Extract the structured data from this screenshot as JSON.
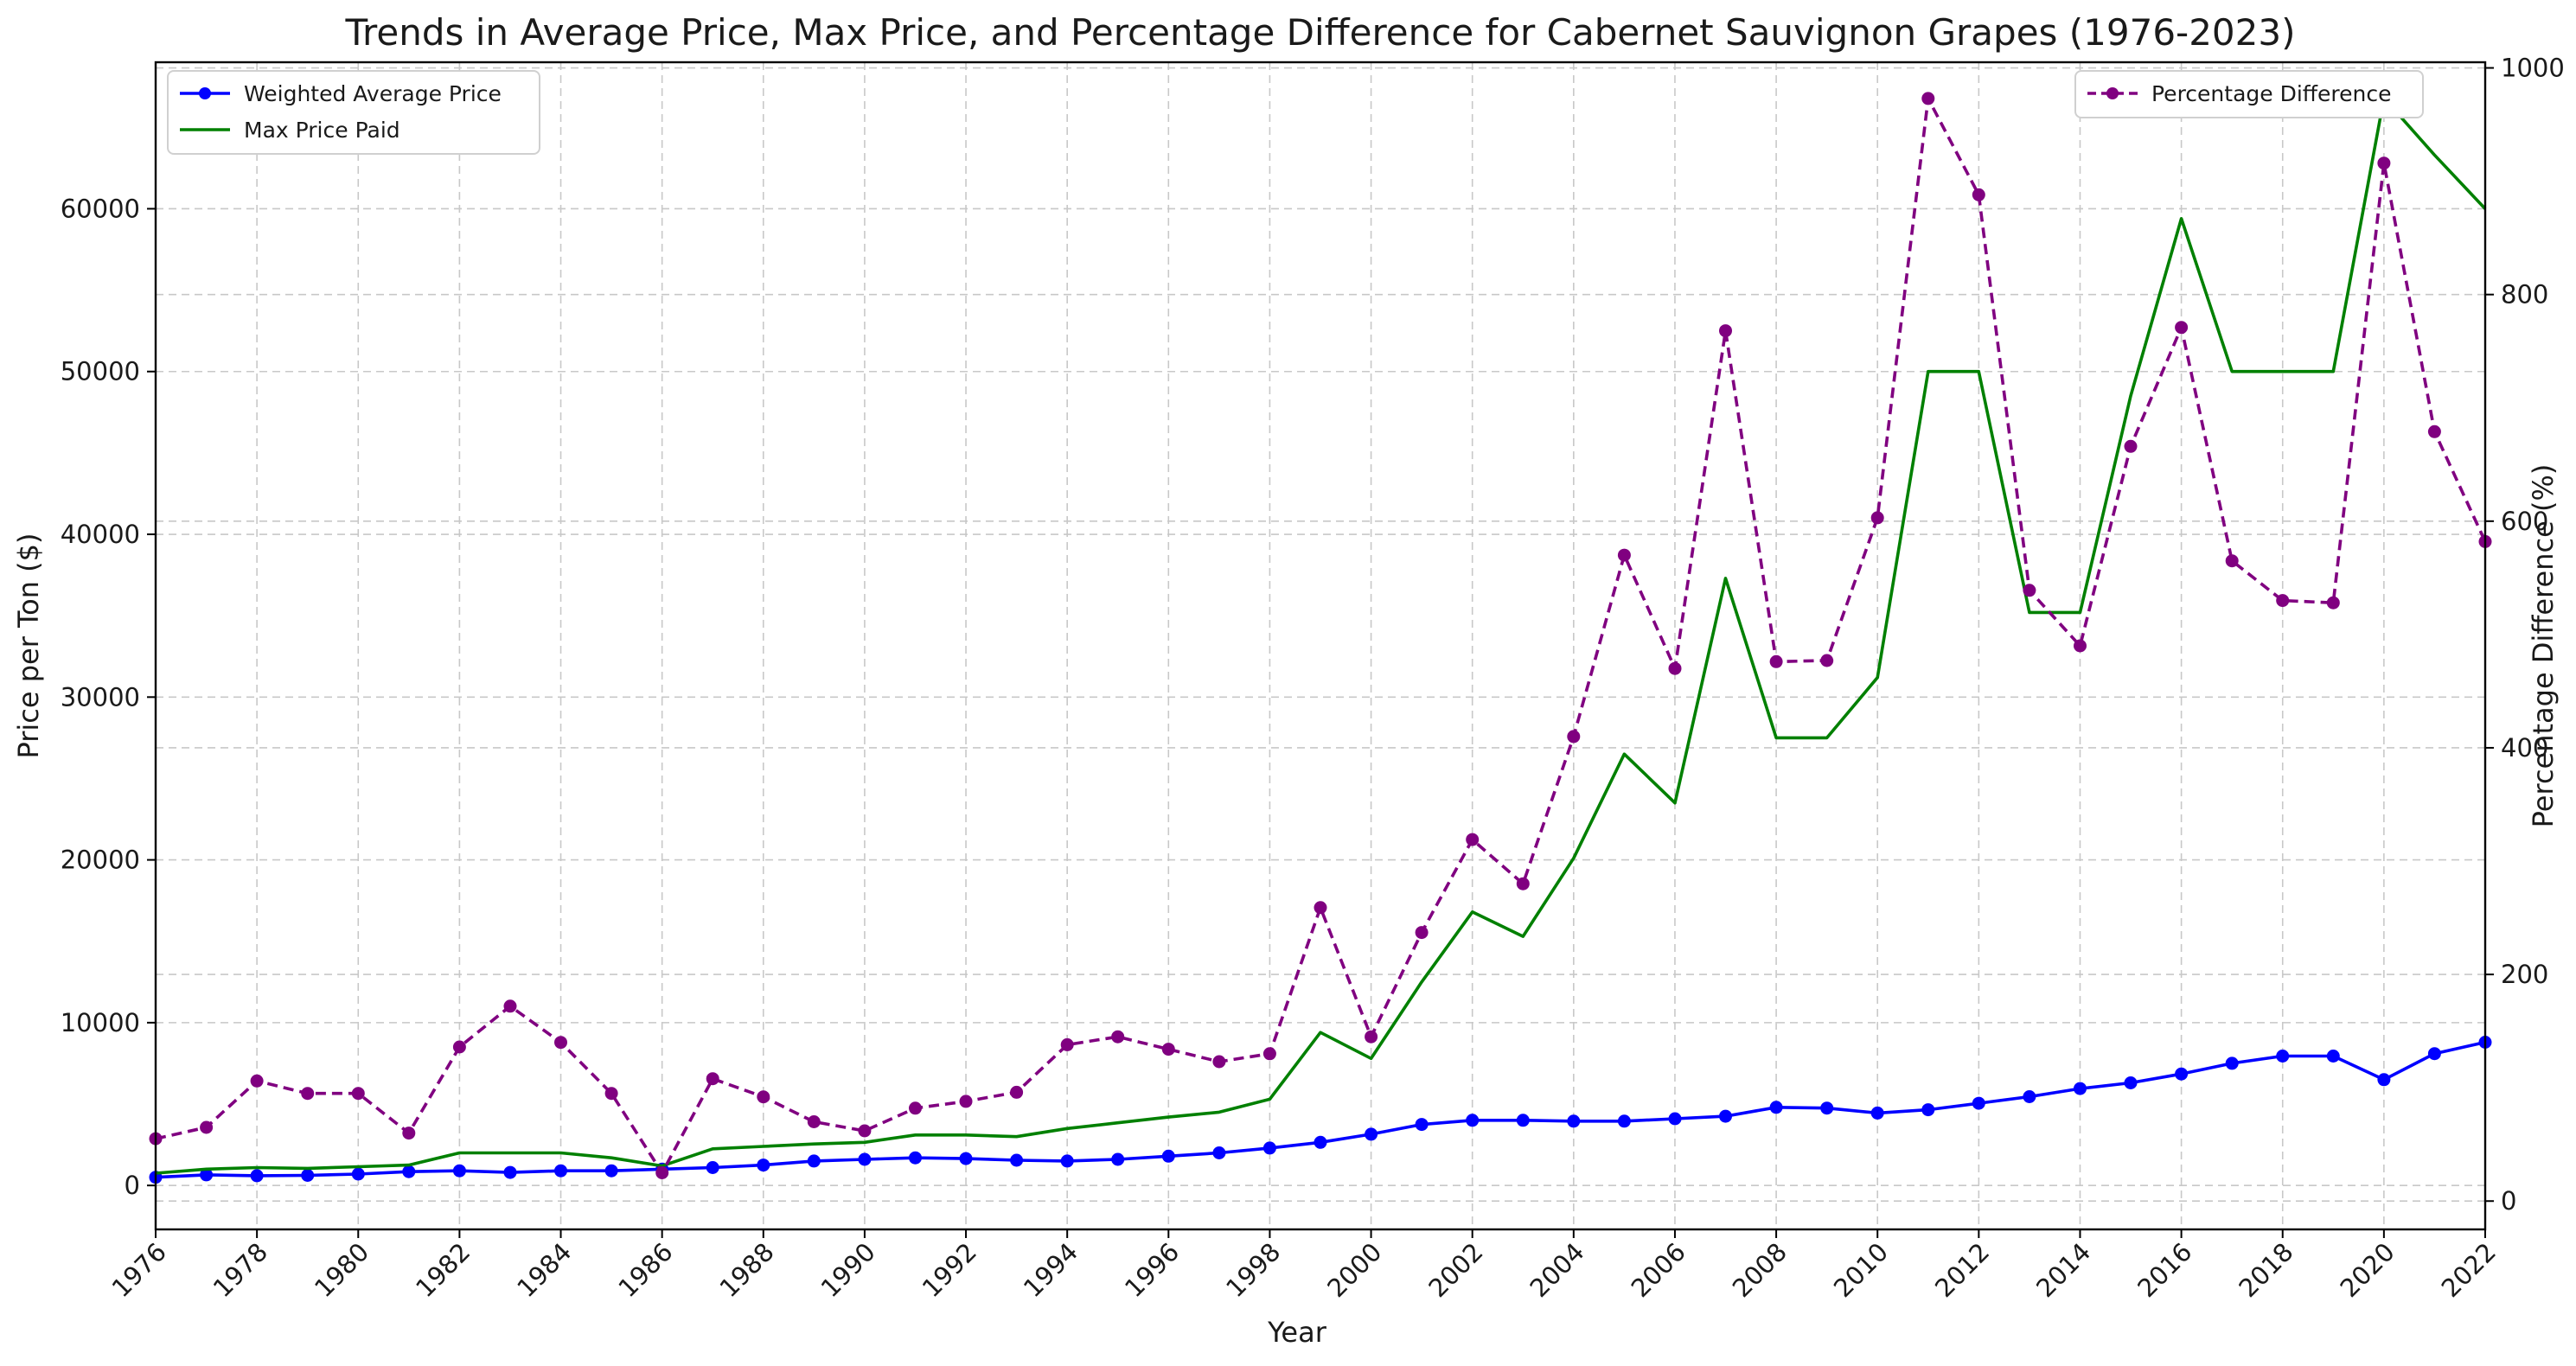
{
  "chart_data": {
    "type": "line",
    "title": "Trends in Average Price, Max Price, and Percentage Difference for Cabernet Sauvignon Grapes (1976-2023)",
    "xlabel": "Year",
    "ylabel": "Price per Ton ($)",
    "y2label": "Percentage Difference (%)",
    "xlim": [
      1976,
      2022
    ],
    "ylim": [
      -2700,
      69000
    ],
    "y2lim": [
      -25,
      1005
    ],
    "x_ticks": [
      1976,
      1978,
      1980,
      1982,
      1984,
      1986,
      1988,
      1990,
      1992,
      1994,
      1996,
      1998,
      2000,
      2002,
      2004,
      2006,
      2008,
      2010,
      2012,
      2014,
      2016,
      2018,
      2020,
      2022
    ],
    "y_ticks": [
      0,
      10000,
      20000,
      30000,
      40000,
      50000,
      60000
    ],
    "y2_ticks": [
      0,
      200,
      400,
      600,
      800,
      1000
    ],
    "grid": true,
    "legend_left_position": "top-left",
    "legend_right_position": "top-right",
    "x": [
      1976,
      1977,
      1978,
      1979,
      1980,
      1981,
      1982,
      1983,
      1984,
      1985,
      1986,
      1987,
      1988,
      1989,
      1990,
      1991,
      1992,
      1993,
      1994,
      1995,
      1996,
      1997,
      1998,
      1999,
      2000,
      2001,
      2002,
      2003,
      2004,
      2005,
      2006,
      2007,
      2008,
      2009,
      2010,
      2011,
      2012,
      2013,
      2014,
      2015,
      2016,
      2017,
      2018,
      2019,
      2020,
      2021,
      2022
    ],
    "series": [
      {
        "name": "Weighted Average Price",
        "axis": "left",
        "color": "#0000ff",
        "style": "solid",
        "marker": "circle",
        "values": [
          500,
          650,
          600,
          620,
          700,
          850,
          900,
          800,
          900,
          900,
          1000,
          1100,
          1250,
          1500,
          1600,
          1700,
          1650,
          1550,
          1500,
          1600,
          1800,
          2000,
          2300,
          2650,
          3150,
          3750,
          4000,
          4000,
          3950,
          3950,
          4100,
          4250,
          4800,
          4750,
          4450,
          4650,
          5050,
          5450,
          5950,
          6300,
          6850,
          7500,
          7950,
          7950,
          6500,
          8100,
          8800
        ]
      },
      {
        "name": "Max Price Paid",
        "axis": "left",
        "color": "#008000",
        "style": "solid",
        "marker": "none",
        "values": [
          750,
          1000,
          1100,
          1050,
          1150,
          1250,
          2000,
          2000,
          2000,
          1700,
          1200,
          2250,
          2400,
          2550,
          2650,
          3100,
          3100,
          3000,
          3500,
          3850,
          4200,
          4500,
          5300,
          9400,
          7800,
          12500,
          16800,
          15300,
          20100,
          26500,
          23500,
          37300,
          27500,
          27500,
          31200,
          50000,
          50000,
          35200,
          35200,
          48500,
          59400,
          50000,
          50000,
          50000,
          66800,
          63300,
          60000
        ]
      },
      {
        "name": "Percentage Difference",
        "axis": "right",
        "color": "#800080",
        "style": "dashed",
        "marker": "circle",
        "values": [
          55,
          65,
          106,
          95,
          95,
          60,
          136,
          172,
          140,
          95,
          25,
          108,
          92,
          70,
          62,
          82,
          88,
          96,
          138,
          145,
          134,
          123,
          130,
          259,
          145,
          237,
          319,
          280,
          410,
          570,
          470,
          768,
          476,
          477,
          603,
          973,
          888,
          539,
          490,
          666,
          771,
          565,
          530,
          528,
          916,
          679,
          582
        ]
      }
    ]
  }
}
